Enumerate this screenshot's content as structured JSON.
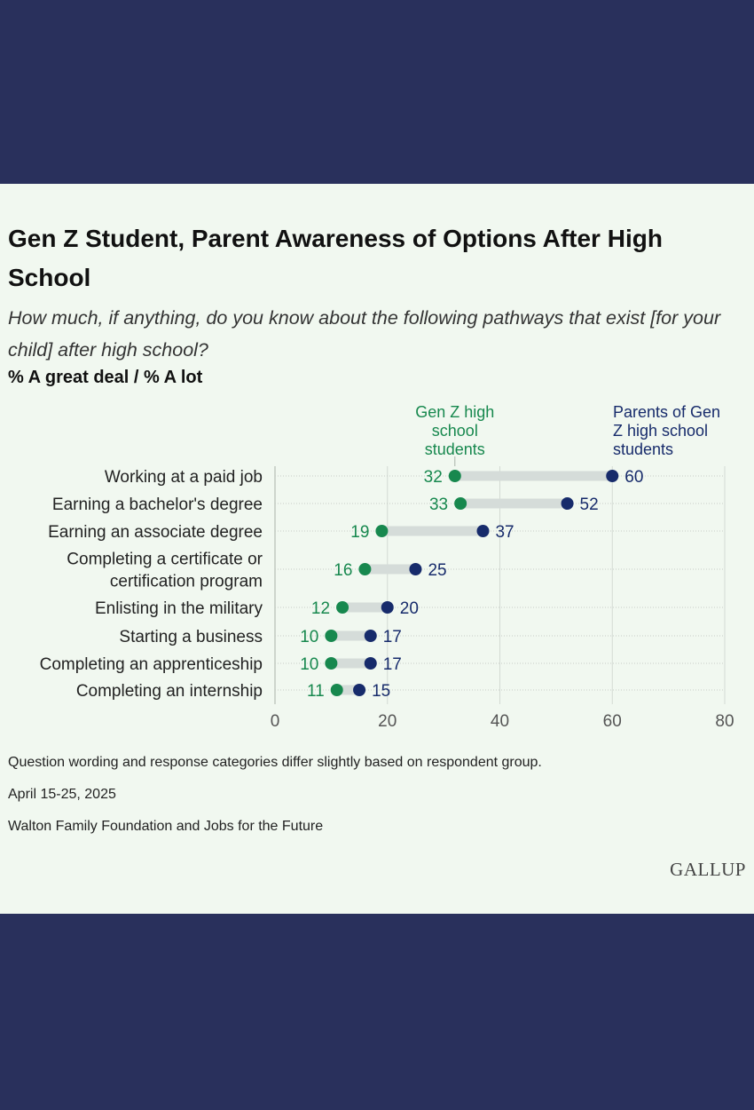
{
  "title": "Gen Z Student, Parent Awareness of Options After High School",
  "subtitle": "How much, if anything, do you know about the following pathways that exist [for your child] after high school?",
  "measure_label": "% A great deal / % A lot",
  "chart_data": {
    "type": "dot",
    "categories": [
      "Working at a paid job",
      "Earning a bachelor's degree",
      "Earning an associate degree",
      "Completing a certificate or certification program",
      "Enlisting in the military",
      "Starting a business",
      "Completing an apprenticeship",
      "Completing an internship"
    ],
    "category_lines": [
      [
        "Working at a paid job"
      ],
      [
        "Earning a bachelor's degree"
      ],
      [
        "Earning an associate degree"
      ],
      [
        "Completing a certificate or",
        "certification program"
      ],
      [
        "Enlisting in the military"
      ],
      [
        "Starting a business"
      ],
      [
        "Completing an apprenticeship"
      ],
      [
        "Completing an internship"
      ]
    ],
    "series": [
      {
        "name": "Gen Z high school students",
        "name_lines": [
          "Gen Z high",
          "school",
          "students"
        ],
        "color": "#17884e",
        "values": [
          32,
          33,
          19,
          16,
          12,
          10,
          10,
          11
        ]
      },
      {
        "name": "Parents of Gen Z high school students",
        "name_lines": [
          "Parents of Gen",
          "Z high school",
          "students"
        ],
        "color": "#172b6b",
        "values": [
          60,
          52,
          37,
          25,
          20,
          17,
          17,
          15
        ]
      }
    ],
    "xlim": [
      0,
      80
    ],
    "xticks": [
      0,
      20,
      40,
      60,
      80
    ],
    "grid": true
  },
  "notes": {
    "wording": "Question wording and response categories differ slightly based on respondent group.",
    "date": "April 15-25, 2025",
    "source": "Walton Family Foundation and Jobs for the Future"
  },
  "logo": "GALLUP"
}
